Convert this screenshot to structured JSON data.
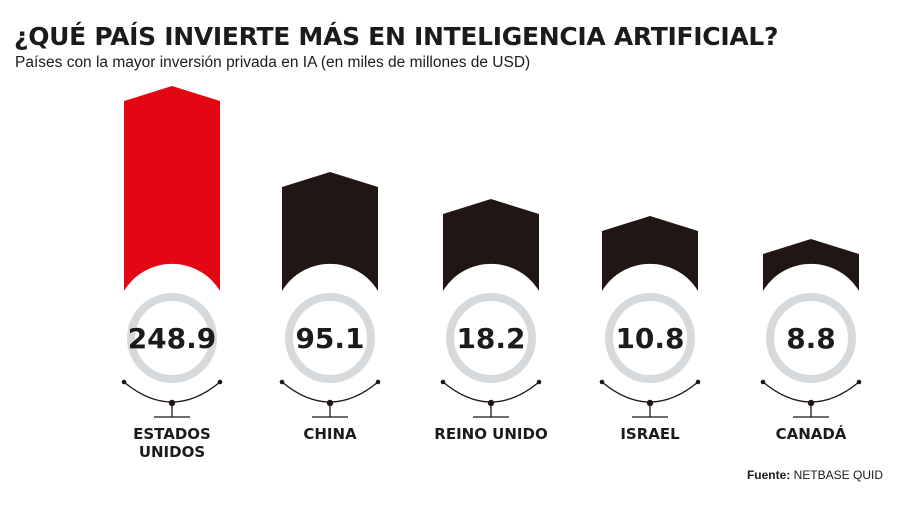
{
  "chart_data": {
    "type": "bar",
    "title": "¿QUÉ PAÍS INVIERTE MÁS EN INTELIGENCIA ARTIFICIAL?",
    "subtitle": "Países con la mayor inversión privada en IA (en miles de millones de USD)",
    "categories": [
      [
        "ESTADOS",
        "UNIDOS"
      ],
      [
        "CHINA"
      ],
      [
        "REINO UNIDO"
      ],
      [
        "ISRAEL"
      ],
      [
        "CANADÁ"
      ]
    ],
    "values": [
      248.9,
      95.1,
      18.2,
      10.8,
      8.8
    ],
    "value_labels": [
      "248.9",
      "95.1",
      "18.2",
      "10.8",
      "8.8"
    ],
    "highlight_color": "#e30613",
    "bar_color": "#201614",
    "ring_color": "#d7dadd"
  },
  "source": {
    "label": "Fuente:",
    "text": "NETBASE QUID"
  }
}
